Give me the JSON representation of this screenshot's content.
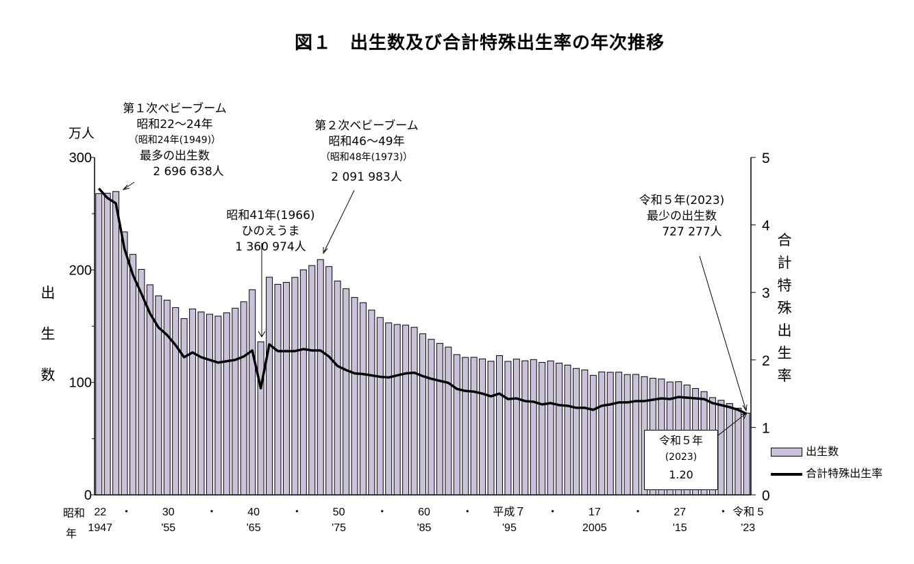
{
  "title": "図１　出生数及び合計特殊出生率の年次推移",
  "chart_data": {
    "type": "bar+line",
    "title": "図１　出生数及び合計特殊出生率の年次推移",
    "left_axis": {
      "unit": "万人",
      "label": "出生数",
      "ylim": [
        0,
        300
      ],
      "ticks": [
        "0",
        "100",
        "200",
        "300"
      ]
    },
    "right_axis": {
      "label": "合計特殊出生率",
      "ylim": [
        0,
        5
      ],
      "ticks": [
        "0",
        "1",
        "2",
        "3",
        "4",
        "5"
      ]
    },
    "x_axis": {
      "era_label": "昭和",
      "year_label": "年",
      "ticks": [
        {
          "year": 1947,
          "era": "22",
          "western": "1947"
        },
        {
          "year": 1955,
          "era": "30",
          "western": "'55"
        },
        {
          "year": 1965,
          "era": "40",
          "western": "'65"
        },
        {
          "year": 1975,
          "era": "50",
          "western": "'75"
        },
        {
          "year": 1985,
          "era": "60",
          "western": "'85"
        },
        {
          "year": 1995,
          "era": "平成７",
          "western": "'95"
        },
        {
          "year": 2005,
          "era": "17",
          "western": "2005"
        },
        {
          "year": 2015,
          "era": "27",
          "western": "'15"
        },
        {
          "year": 2023,
          "era": "令和 5",
          "western": "'23"
        }
      ],
      "dot": "・"
    },
    "years": [
      1947,
      1948,
      1949,
      1950,
      1951,
      1952,
      1953,
      1954,
      1955,
      1956,
      1957,
      1958,
      1959,
      1960,
      1961,
      1962,
      1963,
      1964,
      1965,
      1966,
      1967,
      1968,
      1969,
      1970,
      1971,
      1972,
      1973,
      1974,
      1975,
      1976,
      1977,
      1978,
      1979,
      1980,
      1981,
      1982,
      1983,
      1984,
      1985,
      1986,
      1987,
      1988,
      1989,
      1990,
      1991,
      1992,
      1993,
      1994,
      1995,
      1996,
      1997,
      1998,
      1999,
      2000,
      2001,
      2002,
      2003,
      2004,
      2005,
      2006,
      2007,
      2008,
      2009,
      2010,
      2011,
      2012,
      2013,
      2014,
      2015,
      2016,
      2017,
      2018,
      2019,
      2020,
      2021,
      2022,
      2023
    ],
    "series": [
      {
        "name": "出生数",
        "type": "bar",
        "color": "#c9c2da",
        "values": [
          267.9,
          268.2,
          269.7,
          233.8,
          213.8,
          200.5,
          186.8,
          177.0,
          173.1,
          166.5,
          156.7,
          165.3,
          162.6,
          160.6,
          158.9,
          161.9,
          166.0,
          171.7,
          182.4,
          136.1,
          193.5,
          187.2,
          188.9,
          193.4,
          200.1,
          203.9,
          209.2,
          203.0,
          190.1,
          183.3,
          175.5,
          170.9,
          164.3,
          157.7,
          152.9,
          151.5,
          150.9,
          149.0,
          143.2,
          138.3,
          134.7,
          131.4,
          124.7,
          122.2,
          122.3,
          120.9,
          118.8,
          123.8,
          118.7,
          120.7,
          119.2,
          120.3,
          117.8,
          119.1,
          117.1,
          115.4,
          112.4,
          111.1,
          106.3,
          109.3,
          109.0,
          109.1,
          107.0,
          107.1,
          105.1,
          103.7,
          103.0,
          100.4,
          100.6,
          97.7,
          94.6,
          91.8,
          86.5,
          84.1,
          81.2,
          77.1,
          72.7
        ]
      },
      {
        "name": "合計特殊出生率",
        "type": "line",
        "color": "#000000",
        "values": [
          4.54,
          4.4,
          4.32,
          3.65,
          3.26,
          2.98,
          2.69,
          2.48,
          2.37,
          2.22,
          2.04,
          2.11,
          2.04,
          2.0,
          1.96,
          1.98,
          2.0,
          2.05,
          2.14,
          1.58,
          2.23,
          2.13,
          2.13,
          2.13,
          2.16,
          2.14,
          2.14,
          2.05,
          1.91,
          1.85,
          1.8,
          1.79,
          1.77,
          1.75,
          1.74,
          1.77,
          1.8,
          1.81,
          1.76,
          1.72,
          1.69,
          1.66,
          1.57,
          1.54,
          1.53,
          1.5,
          1.46,
          1.5,
          1.42,
          1.43,
          1.39,
          1.38,
          1.34,
          1.36,
          1.33,
          1.32,
          1.29,
          1.29,
          1.26,
          1.32,
          1.34,
          1.37,
          1.37,
          1.39,
          1.39,
          1.41,
          1.43,
          1.42,
          1.45,
          1.44,
          1.43,
          1.42,
          1.36,
          1.33,
          1.3,
          1.26,
          1.2
        ]
      }
    ],
    "legend": [
      "出生数",
      "合計特殊出生率"
    ],
    "annotations": {
      "boom1": {
        "l1": "第１次ベビーブーム",
        "l2": "昭和22～24年",
        "l3": "（昭和24年(1949)）",
        "l4": "最多の出生数",
        "l5": "2 696 638人"
      },
      "boom2": {
        "l1": "第２次ベビーブーム",
        "l2": "昭和46～49年",
        "l3": "（昭和48年(1973)）",
        "l4": "2 091 983人"
      },
      "hinoe": {
        "l1": "昭和41年(1966)",
        "l2": "ひのえうま",
        "l3": "1 360 974人"
      },
      "min": {
        "l1": "令和５年(2023)",
        "l2": "最少の出生数",
        "l3": "727 277人"
      },
      "tfr_box": {
        "l1": "令和５年",
        "l2": "(2023)",
        "l3": "1.20"
      }
    }
  }
}
